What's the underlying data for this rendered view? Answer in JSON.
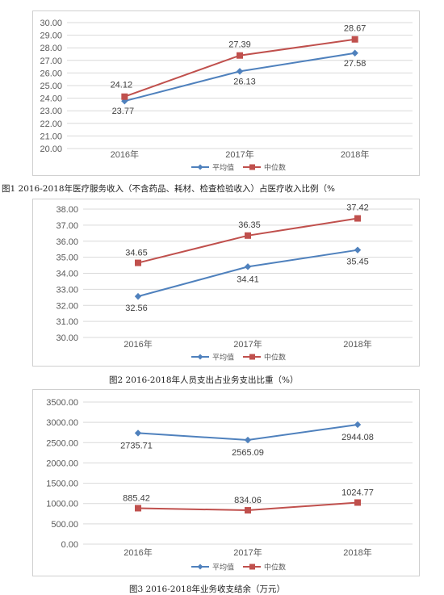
{
  "chart_data": [
    {
      "type": "line",
      "title": "",
      "categories": [
        "2016年",
        "2017年",
        "2018年"
      ],
      "series": [
        {
          "name": "平均值",
          "values": [
            23.77,
            26.13,
            27.58
          ],
          "color": "#4f81bd",
          "marker": "diamond",
          "labels": [
            "23.77",
            "26.13",
            "27.58"
          ]
        },
        {
          "name": "中位数",
          "values": [
            24.12,
            27.39,
            28.67
          ],
          "color": "#c0504d",
          "marker": "square",
          "labels": [
            "24.12",
            "27.39",
            "28.67"
          ]
        }
      ],
      "yticks": [
        "20.00",
        "21.00",
        "22.00",
        "23.00",
        "24.00",
        "25.00",
        "26.00",
        "27.00",
        "28.00",
        "29.00",
        "30.00"
      ],
      "ylim": [
        20,
        30
      ],
      "grid": true,
      "legend": "bottom",
      "caption": "图1   2016-2018年医疗服务收入（不含药品、耗材、检查检验收入）占医疗收入比例（%"
    },
    {
      "type": "line",
      "title": "",
      "categories": [
        "2016年",
        "2017年",
        "2018年"
      ],
      "series": [
        {
          "name": "平均值",
          "values": [
            32.56,
            34.41,
            35.45
          ],
          "color": "#4f81bd",
          "marker": "diamond",
          "labels": [
            "32.56",
            "34.41",
            "35.45"
          ]
        },
        {
          "name": "中位数",
          "values": [
            34.65,
            36.35,
            37.42
          ],
          "color": "#c0504d",
          "marker": "square",
          "labels": [
            "34.65",
            "36.35",
            "37.42"
          ]
        }
      ],
      "yticks": [
        "30.00",
        "31.00",
        "32.00",
        "33.00",
        "34.00",
        "35.00",
        "36.00",
        "37.00",
        "38.00"
      ],
      "ylim": [
        30,
        38
      ],
      "grid": true,
      "legend": "bottom",
      "caption": "图2  2016-2018年人员支出占业务支出比重（%）"
    },
    {
      "type": "line",
      "title": "",
      "categories": [
        "2016年",
        "2017年",
        "2018年"
      ],
      "series": [
        {
          "name": "平均值",
          "values": [
            2735.71,
            2565.09,
            2944.08
          ],
          "color": "#4f81bd",
          "marker": "diamond",
          "labels": [
            "2735.71",
            "2565.09",
            "2944.08"
          ]
        },
        {
          "name": "中位数",
          "values": [
            885.42,
            834.06,
            1024.77
          ],
          "color": "#c0504d",
          "marker": "square",
          "labels": [
            "885.42",
            "834.06",
            "1024.77"
          ]
        }
      ],
      "yticks": [
        "0.00",
        "500.00",
        "1000.00",
        "1500.00",
        "2000.00",
        "2500.00",
        "3000.00",
        "3500.00"
      ],
      "ylim": [
        0,
        3500
      ],
      "grid": true,
      "legend": "bottom",
      "caption": "图3  2016-2018年业务收支结余（万元）"
    }
  ]
}
